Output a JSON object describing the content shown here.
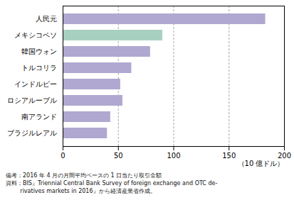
{
  "chart_data": {
    "type": "bar",
    "orientation": "horizontal",
    "categories": [
      "人民元",
      "メキシコペソ",
      "韓国ウォン",
      "トルコリラ",
      "インドルピー",
      "ロシアルーブル",
      "南アランド",
      "ブラジルレアル"
    ],
    "values": [
      183,
      90,
      79,
      62,
      52,
      54,
      43,
      40
    ],
    "colors": [
      "#b0a8d0",
      "#a8d0c0",
      "#b0a8d0",
      "#b0a8d0",
      "#b0a8d0",
      "#b0a8d0",
      "#b0a8d0",
      "#b0a8d0"
    ],
    "xlim": [
      0,
      200
    ],
    "xticks": [
      0,
      50,
      100,
      150,
      200
    ],
    "xlabel": "（10 億ドル）",
    "grid": true,
    "annotations": [
      "備考：2016 年 4 月の月間平均ベースの 1 日当たり取引金額",
      "資料：BIS』Triennial Central Bank Survey of foreign exchange and OTC de-",
      "        rivatives markets in 2016』から経済産業省作成。"
    ]
  }
}
